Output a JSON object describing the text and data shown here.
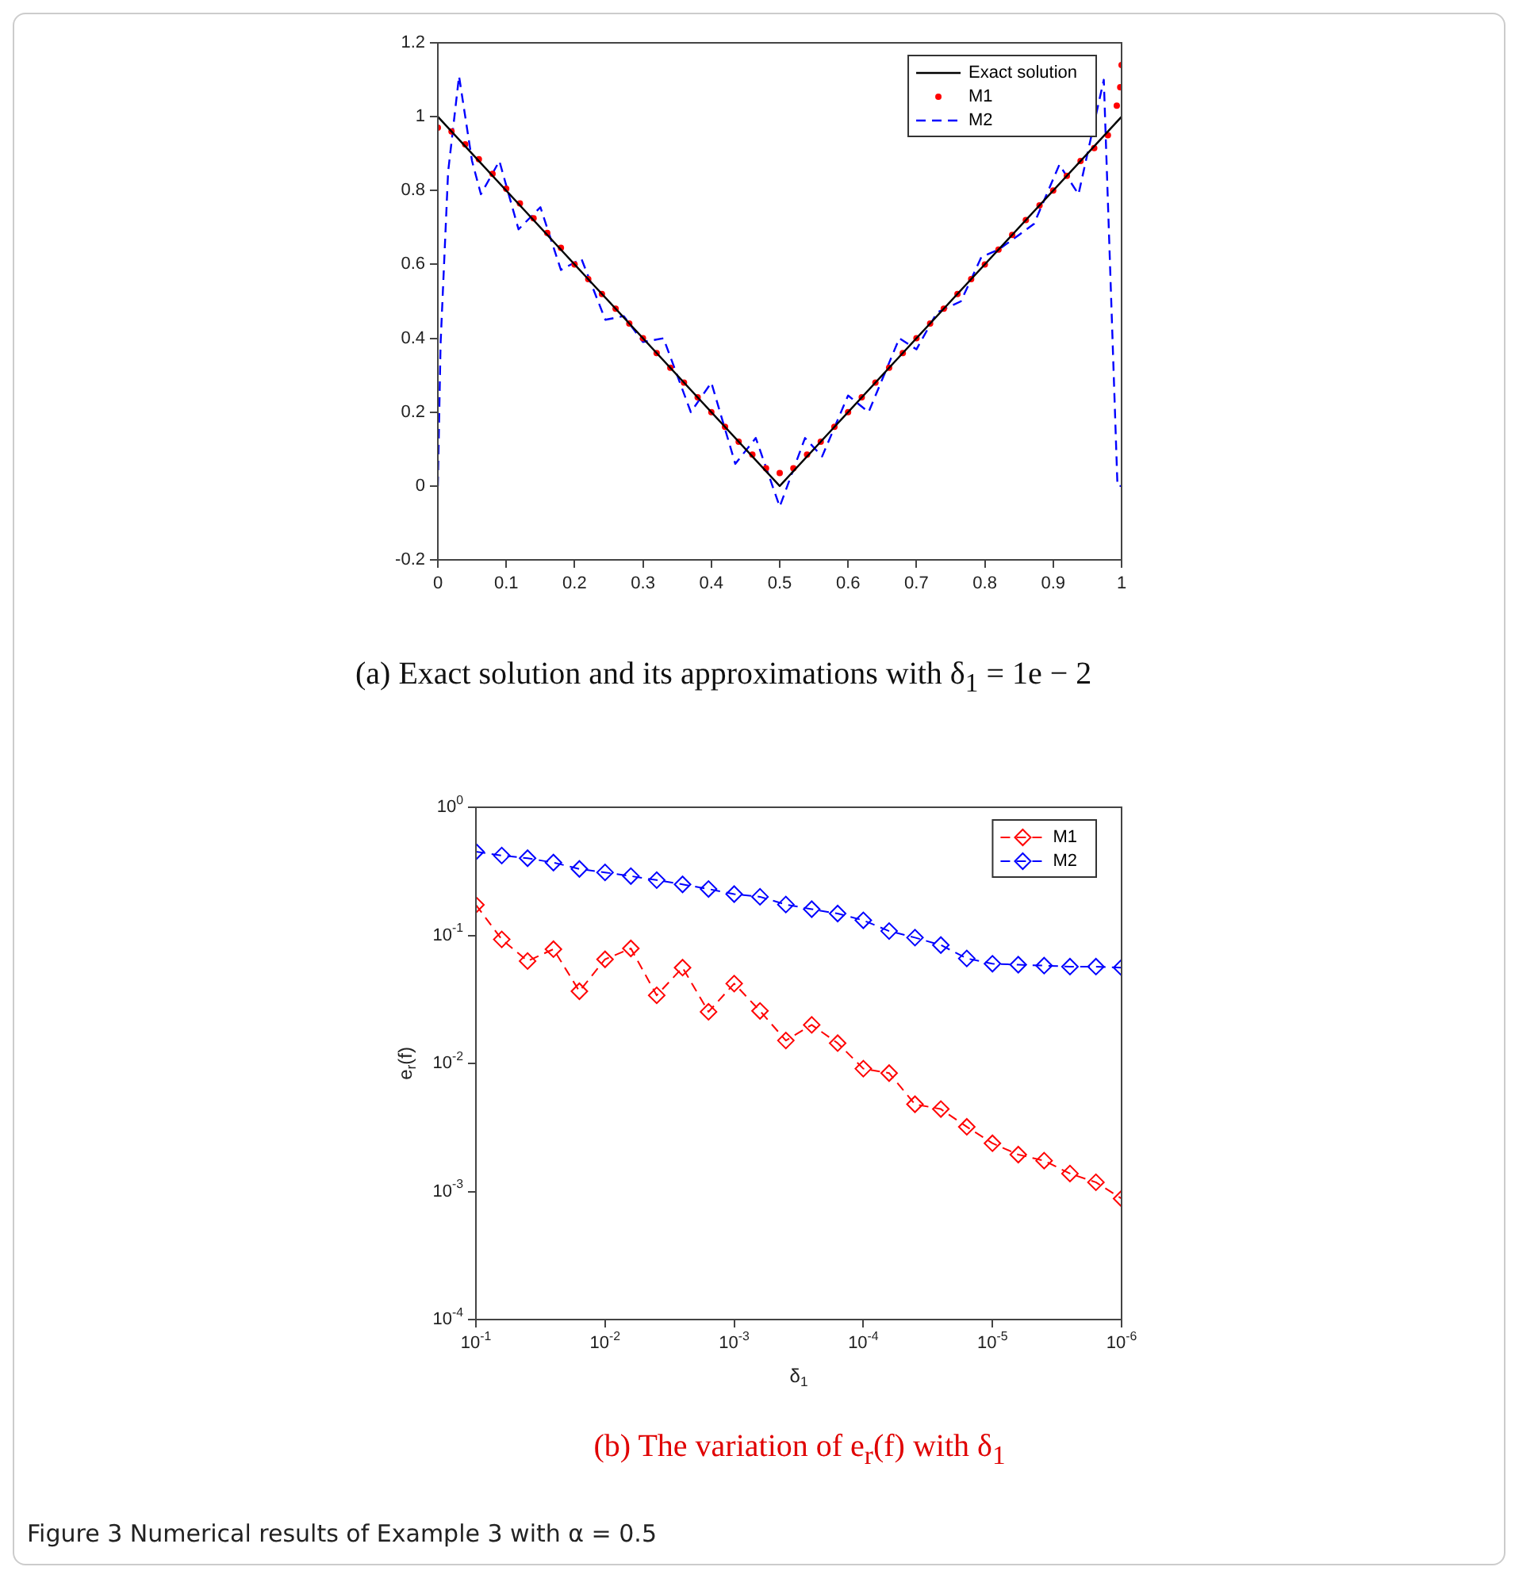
{
  "chart_data": [
    {
      "type": "line",
      "xlim": [
        0,
        1
      ],
      "ylim": [
        -0.2,
        1.2
      ],
      "xticks": [
        0,
        0.1,
        0.2,
        0.3,
        0.4,
        0.5,
        0.6,
        0.7,
        0.8,
        0.9,
        1
      ],
      "yticks": [
        -0.2,
        0,
        0.2,
        0.4,
        0.6,
        0.8,
        1,
        1.2
      ],
      "legend": "top right",
      "series": [
        {
          "name": "Exact solution",
          "color": "#000000",
          "marker": "none",
          "line_style": "solid",
          "x": [
            0,
            0.5,
            1
          ],
          "values": [
            1,
            0,
            1
          ]
        },
        {
          "name": "M1",
          "color": "#ff0000",
          "type": "scatter",
          "marker": "circle",
          "x": [
            0,
            0.02,
            0.04,
            0.06,
            0.08,
            0.1,
            0.12,
            0.14,
            0.16,
            0.18,
            0.2,
            0.22,
            0.24,
            0.26,
            0.28,
            0.3,
            0.32,
            0.34,
            0.36,
            0.38,
            0.4,
            0.42,
            0.44,
            0.46,
            0.48,
            0.5,
            0.52,
            0.54,
            0.56,
            0.58,
            0.6,
            0.62,
            0.64,
            0.66,
            0.68,
            0.7,
            0.72,
            0.74,
            0.76,
            0.78,
            0.8,
            0.82,
            0.84,
            0.86,
            0.88,
            0.9,
            0.92,
            0.94,
            0.96,
            0.98,
            0.993,
            0.998,
            1
          ],
          "values": [
            0.97,
            0.96,
            0.925,
            0.885,
            0.845,
            0.805,
            0.765,
            0.725,
            0.685,
            0.645,
            0.6,
            0.56,
            0.52,
            0.48,
            0.44,
            0.4,
            0.36,
            0.32,
            0.28,
            0.24,
            0.2,
            0.16,
            0.12,
            0.085,
            0.048,
            0.035,
            0.048,
            0.085,
            0.12,
            0.16,
            0.2,
            0.24,
            0.28,
            0.32,
            0.36,
            0.4,
            0.44,
            0.48,
            0.52,
            0.56,
            0.6,
            0.64,
            0.68,
            0.72,
            0.76,
            0.8,
            0.84,
            0.88,
            0.915,
            0.95,
            1.03,
            1.08,
            1.14
          ]
        },
        {
          "name": "M2",
          "color": "#0000ff",
          "marker": "none",
          "line_style": "dashed",
          "x": [
            0,
            0.004,
            0.015,
            0.031,
            0.05,
            0.063,
            0.09,
            0.118,
            0.15,
            0.18,
            0.21,
            0.245,
            0.272,
            0.3,
            0.33,
            0.37,
            0.4,
            0.435,
            0.465,
            0.5,
            0.537,
            0.562,
            0.6,
            0.63,
            0.675,
            0.7,
            0.73,
            0.765,
            0.795,
            0.82,
            0.85,
            0.872,
            0.909,
            0.937,
            0.974,
            0.994,
            1
          ],
          "values": [
            0,
            0.385,
            0.85,
            1.11,
            0.88,
            0.79,
            0.88,
            0.695,
            0.755,
            0.585,
            0.615,
            0.45,
            0.46,
            0.39,
            0.4,
            0.2,
            0.28,
            0.06,
            0.13,
            -0.056,
            0.13,
            0.08,
            0.245,
            0.2,
            0.4,
            0.37,
            0.47,
            0.5,
            0.62,
            0.64,
            0.68,
            0.71,
            0.87,
            0.79,
            1.1,
            0,
            0
          ]
        }
      ],
      "annotations": [
        "(a) Exact solution and its approximations with δ$_{1}$ = 1e − 2"
      ]
    },
    {
      "type": "line",
      "log": "xy",
      "xlabel": "δ$_{1}$",
      "ylabel": "e$_{r}$(f)",
      "marker": "diamond",
      "line_style": "dashed",
      "legend": "top right",
      "xlim": [
        0.1,
        1e-06
      ],
      "ylim": [
        0.0001,
        1
      ],
      "xticks": [
        {
          "value": 0.1,
          "label": "10$^{-1}$"
        },
        {
          "value": 0.01,
          "label": "10$^{-2}$"
        },
        {
          "value": 0.001,
          "label": "10$^{-3}$"
        },
        {
          "value": 0.0001,
          "label": "10$^{-4}$"
        },
        {
          "value": 1e-05,
          "label": "10$^{-5}$"
        },
        {
          "value": 1e-06,
          "label": "10$^{-6}$"
        }
      ],
      "yticks": [
        {
          "value": 0.0001,
          "label": "10$^{-4}$"
        },
        {
          "value": 0.001,
          "label": "10$^{-3}$"
        },
        {
          "value": 0.01,
          "label": "10$^{-2}$"
        },
        {
          "value": 0.1,
          "label": "10$^{-1}$"
        },
        {
          "value": 1,
          "label": "10$^{0}$"
        }
      ],
      "x": [
        0.1,
        0.0631,
        0.0398,
        0.0251,
        0.0158,
        0.01,
        0.00631,
        0.00398,
        0.00251,
        0.00158,
        0.001,
        0.000631,
        0.000398,
        0.000251,
        0.000158,
        0.0001,
        6.31e-05,
        3.98e-05,
        2.51e-05,
        1.58e-05,
        1e-05,
        6.31e-06,
        3.98e-06,
        2.51e-06,
        1.58e-06,
        1e-06
      ],
      "series": [
        {
          "name": "M1",
          "color": "#ff0000",
          "values": [
            0.173,
            0.093,
            0.063,
            0.078,
            0.0366,
            0.065,
            0.079,
            0.034,
            0.056,
            0.0253,
            0.042,
            0.0257,
            0.0151,
            0.02,
            0.0144,
            0.0091,
            0.0084,
            0.0048,
            0.0044,
            0.0032,
            0.00238,
            0.00194,
            0.00174,
            0.00138,
            0.00118,
            0.00088
          ]
        },
        {
          "name": "M2",
          "color": "#0000ff",
          "values": [
            0.45,
            0.42,
            0.4,
            0.37,
            0.33,
            0.31,
            0.29,
            0.27,
            0.25,
            0.23,
            0.21,
            0.2,
            0.174,
            0.16,
            0.148,
            0.131,
            0.108,
            0.096,
            0.084,
            0.066,
            0.06,
            0.059,
            0.058,
            0.057,
            0.057,
            0.056
          ]
        }
      ],
      "annotations": [
        "(b) The variation of e$_{r}$(f) with δ$_{1}$",
        "Figure 3 Numerical results of Example 3 with α = 0.5"
      ]
    }
  ]
}
